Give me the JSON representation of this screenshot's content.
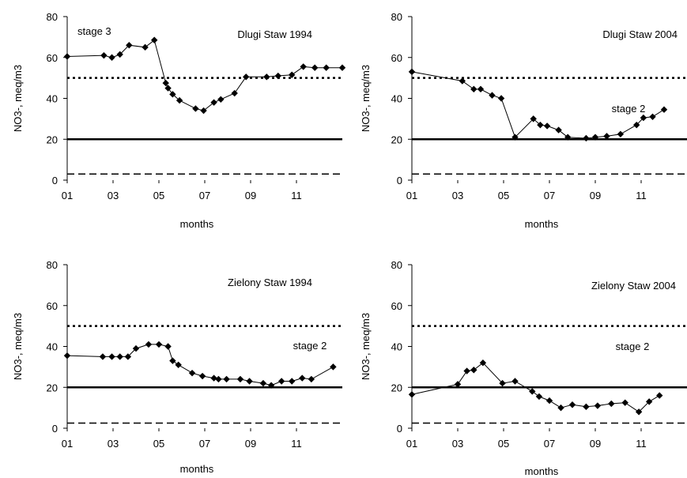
{
  "chart_data": [
    {
      "type": "line",
      "title": "",
      "xlabel": "months",
      "ylabel": "NO3-, meq/m3",
      "ylim": [
        0,
        80
      ],
      "xlim": [
        1,
        13
      ],
      "yticks": [
        0,
        20,
        40,
        60,
        80
      ],
      "xticks": [
        1,
        3,
        5,
        7,
        9,
        11
      ],
      "xtick_labels": [
        "01",
        "03",
        "05",
        "07",
        "09",
        "11"
      ],
      "annotations": [
        "stage 3",
        "Dlugi Staw 1994"
      ],
      "reference_lines": [
        {
          "y": 50,
          "style": "dotted"
        },
        {
          "y": 20,
          "style": "solid"
        },
        {
          "y": 3,
          "style": "dashed"
        }
      ],
      "series": [
        {
          "x": [
            1.0,
            2.6,
            2.95,
            3.3,
            3.7,
            4.4,
            4.8,
            5.3,
            5.4,
            5.6,
            5.9,
            6.6,
            6.95,
            7.4,
            7.7,
            8.3,
            8.8,
            9.7,
            10.2,
            10.8,
            11.3,
            11.8,
            12.3,
            13.0
          ],
          "y": [
            60.5,
            61,
            60,
            61.5,
            66,
            65,
            68.5,
            47.5,
            45,
            42,
            39,
            35,
            34,
            38,
            39.5,
            42.5,
            50.5,
            50.5,
            51,
            51.5,
            55.5,
            55,
            55,
            55
          ]
        }
      ]
    },
    {
      "type": "line",
      "title": "",
      "xlabel": "months",
      "ylabel": "NO3-, meq/m3",
      "ylim": [
        0,
        80
      ],
      "xlim": [
        1,
        13
      ],
      "yticks": [
        0,
        20,
        40,
        60,
        80
      ],
      "xticks": [
        1,
        3,
        5,
        7,
        9,
        11
      ],
      "xtick_labels": [
        "01",
        "03",
        "05",
        "07",
        "09",
        "11"
      ],
      "annotations": [
        "Dlugi Staw 2004",
        "stage 2"
      ],
      "reference_lines": [
        {
          "y": 50,
          "style": "dotted"
        },
        {
          "y": 20,
          "style": "solid"
        },
        {
          "y": 3,
          "style": "dashed"
        }
      ],
      "series": [
        {
          "x": [
            1.0,
            3.2,
            3.7,
            4.0,
            4.5,
            4.9,
            5.5,
            6.3,
            6.6,
            6.9,
            7.4,
            7.8,
            8.6,
            9.0,
            9.5,
            10.1,
            10.8,
            11.1,
            11.5,
            12.0
          ],
          "y": [
            53,
            48.5,
            44.5,
            44.5,
            41.5,
            40,
            21,
            30,
            27,
            26.5,
            24.5,
            21,
            20.5,
            21,
            21.5,
            22.5,
            27,
            30.5,
            31,
            34.5
          ]
        }
      ]
    },
    {
      "type": "line",
      "title": "",
      "xlabel": "months",
      "ylabel": "NO3-, meq/m3",
      "ylim": [
        0,
        80
      ],
      "xlim": [
        1,
        13
      ],
      "yticks": [
        0,
        20,
        40,
        60,
        80
      ],
      "xticks": [
        1,
        3,
        5,
        7,
        9,
        11
      ],
      "xtick_labels": [
        "01",
        "03",
        "05",
        "07",
        "09",
        "11"
      ],
      "annotations": [
        "Zielony Staw 1994",
        "stage 2"
      ],
      "reference_lines": [
        {
          "y": 50,
          "style": "dotted"
        },
        {
          "y": 20,
          "style": "solid"
        },
        {
          "y": 2.5,
          "style": "dashed"
        }
      ],
      "series": [
        {
          "x": [
            1.0,
            2.55,
            2.95,
            3.3,
            3.65,
            4.0,
            4.55,
            5.0,
            5.4,
            5.6,
            5.85,
            6.45,
            6.9,
            7.4,
            7.6,
            7.95,
            8.55,
            8.95,
            9.55,
            9.9,
            10.35,
            10.8,
            11.25,
            11.65,
            12.6
          ],
          "y": [
            35.5,
            35,
            35,
            35,
            35,
            39,
            41,
            41,
            40,
            33,
            31,
            27,
            25.5,
            24.5,
            24,
            24,
            24,
            23,
            22,
            21,
            23,
            23,
            24.5,
            24,
            30
          ]
        }
      ]
    },
    {
      "type": "line",
      "title": "",
      "xlabel": "months",
      "ylabel": "NO3-, meq/m3",
      "ylim": [
        0,
        80
      ],
      "xlim": [
        1,
        13
      ],
      "yticks": [
        0,
        20,
        40,
        60,
        80
      ],
      "xticks": [
        1,
        3,
        5,
        7,
        9,
        11
      ],
      "xtick_labels": [
        "01",
        "03",
        "05",
        "07",
        "09",
        "11"
      ],
      "annotations": [
        "Zielony Staw 2004",
        "stage 2"
      ],
      "reference_lines": [
        {
          "y": 50,
          "style": "dotted"
        },
        {
          "y": 20,
          "style": "solid"
        },
        {
          "y": 2.5,
          "style": "dashed"
        }
      ],
      "series": [
        {
          "x": [
            1.0,
            3.0,
            3.4,
            3.7,
            4.1,
            4.95,
            5.5,
            6.25,
            6.55,
            7.0,
            7.5,
            8.0,
            8.6,
            9.1,
            9.7,
            10.3,
            10.9,
            11.35,
            11.8
          ],
          "y": [
            16.5,
            21.5,
            28,
            28.5,
            32,
            22,
            23,
            18,
            15.5,
            13.5,
            10,
            11.5,
            10.5,
            11,
            12,
            12.5,
            8,
            13,
            16
          ]
        }
      ]
    }
  ]
}
